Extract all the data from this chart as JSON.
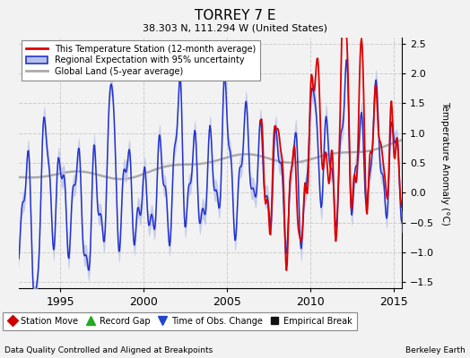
{
  "title": "TORREY 7 E",
  "subtitle": "38.303 N, 111.294 W (United States)",
  "xlabel_left": "Data Quality Controlled and Aligned at Breakpoints",
  "xlabel_right": "Berkeley Earth",
  "ylabel": "Temperature Anomaly (°C)",
  "xlim": [
    1992.5,
    2015.5
  ],
  "ylim": [
    -1.6,
    2.6
  ],
  "yticks": [
    -1.5,
    -1.0,
    -0.5,
    0,
    0.5,
    1.0,
    1.5,
    2.0,
    2.5
  ],
  "xticks": [
    1995,
    2000,
    2005,
    2010,
    2015
  ],
  "bg_color": "#f2f2f2",
  "plot_bg_color": "#f2f2f2",
  "grid_color": "#cccccc",
  "station_color": "#dd0000",
  "regional_color": "#2233cc",
  "regional_fill_color": "#b8c0e8",
  "global_color": "#aaaaaa",
  "legend_items": [
    "This Temperature Station (12-month average)",
    "Regional Expectation with 95% uncertainty",
    "Global Land (5-year average)"
  ],
  "marker_legend": [
    "Station Move",
    "Record Gap",
    "Time of Obs. Change",
    "Empirical Break"
  ]
}
